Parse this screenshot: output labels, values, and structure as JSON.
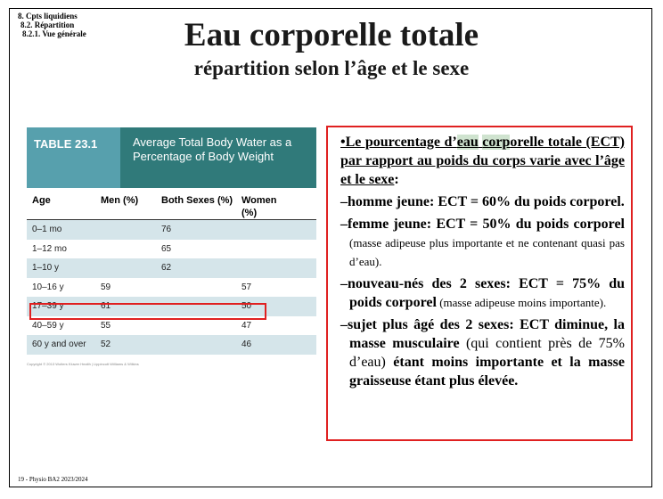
{
  "breadcrumb": [
    "8. Cpts liquidiens",
    "8.2. Répartition",
    "8.2.1. Vue générale"
  ],
  "title": "Eau corporelle totale",
  "subtitle": "répartition selon l’âge et le sexe",
  "table": {
    "number": "TABLE 23.1",
    "caption": "Average Total Body Water as a Percentage of Body Weight",
    "headers": [
      "Age",
      "Men (%)",
      "Both Sexes (%)",
      "Women (%)"
    ],
    "rows": [
      {
        "age": "0–1 mo",
        "men": "",
        "both": "76",
        "women": ""
      },
      {
        "age": "1–12 mo",
        "men": "",
        "both": "65",
        "women": ""
      },
      {
        "age": "1–10 y",
        "men": "",
        "both": "62",
        "women": ""
      },
      {
        "age": "10–16 y",
        "men": "59",
        "both": "",
        "women": "57"
      },
      {
        "age": "17–39 y",
        "men": "61",
        "both": "",
        "women": "50"
      },
      {
        "age": "40–59 y",
        "men": "55",
        "both": "",
        "women": "47"
      },
      {
        "age": "60 y and over",
        "men": "52",
        "both": "",
        "women": "46"
      }
    ],
    "copyright": "Copyright © 2013 Wolters Kluwer Health | Lippincott Williams & Wilkins"
  },
  "text": {
    "intro_a": "•Le pourcentage d’",
    "intro_hl1": "eau",
    "intro_b": " ",
    "intro_hl2": "corp",
    "intro_c": "orelle totale (ECT) par rapport au poids du corps varie avec l’âge et le sexe",
    "intro_colon": ":",
    "item1": "–homme jeune: ECT = 60% du poids corporel.",
    "item2_bold": "–femme jeune: ECT = 50% du poids corporel",
    "item2_small": " (masse adipeuse plus importante et ne contenant quasi pas d’eau).",
    "item3_bold": "–nouveau-nés des 2 sexes: ECT = 75% du poids corporel",
    "item3_small": " (masse adipeuse moins importante).",
    "item4_bold1": "–sujet plus âgé des 2 sexes: ECT diminue, la masse musculaire",
    "item4_norm": " (qui contient près de 75% d’eau) ",
    "item4_bold2": "étant moins importante et la masse graisseuse étant plus élevée."
  },
  "footer": "19 - Physio BA2 2023/2024"
}
